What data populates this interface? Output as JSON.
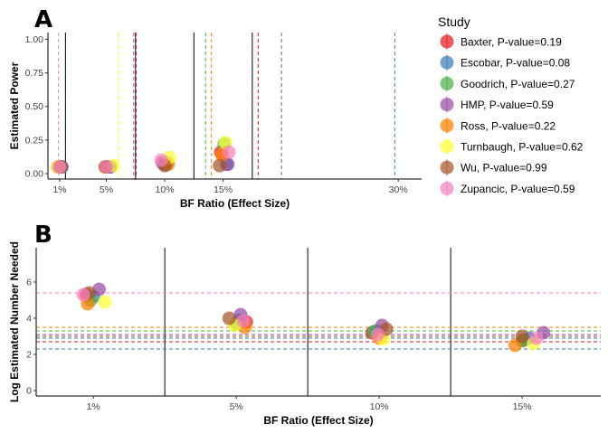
{
  "colors": {
    "Baxter": "#e41a1c",
    "Escobar": "#377eb8",
    "Goodrich": "#4daf4a",
    "HMP": "#984ea3",
    "Ross": "#ff7f00",
    "Turnbaugh": "#ffff33",
    "Wu": "#a65628",
    "Zupancic": "#f781bf"
  },
  "legend": {
    "title": "Study",
    "entries": [
      {
        "study": "Baxter",
        "label": "Baxter, P-value=0.19"
      },
      {
        "study": "Escobar",
        "label": "Escobar, P-value=0.08"
      },
      {
        "study": "Goodrich",
        "label": "Goodrich, P-value=0.27"
      },
      {
        "study": "HMP",
        "label": "HMP, P-value=0.59"
      },
      {
        "study": "Ross",
        "label": "Ross, P-value=0.22"
      },
      {
        "study": "Turnbaugh",
        "label": "Turnbaugh, P-value=0.62"
      },
      {
        "study": "Wu",
        "label": "Wu, P-value=0.99"
      },
      {
        "study": "Zupancic",
        "label": "Zupancic, P-value=0.59"
      }
    ]
  },
  "chart_data": [
    {
      "panel": "A",
      "type": "scatter",
      "xlabel": "BF Ratio (Effect Size)",
      "ylabel": "Estimated Power",
      "x_ticks": [
        "1%",
        "5%",
        "10%",
        "15%",
        "30%"
      ],
      "x_tick_values": [
        1,
        5,
        10,
        15,
        30
      ],
      "xlim": [
        0,
        32
      ],
      "ylim": [
        -0.04,
        1.05
      ],
      "y_ticks": [
        "0.00",
        "0.25",
        "0.50",
        "0.75",
        "1.00"
      ],
      "y_tick_values": [
        0,
        0.25,
        0.5,
        0.75,
        1.0
      ],
      "vlines_solid": [
        1.5,
        7.5,
        12.5,
        17.5
      ],
      "vlines_dashed": [
        {
          "study": "Zupancic",
          "x": 0.9
        },
        {
          "study": "Turnbaugh",
          "x": 6.0
        },
        {
          "study": "HMP",
          "x": 7.35
        },
        {
          "study": "Baxter",
          "x": 7.55
        },
        {
          "study": "Goodrich",
          "x": 13.5
        },
        {
          "study": "Ross",
          "x": 14.0
        },
        {
          "study": "Baxter",
          "x": 18.0
        },
        {
          "study": "HMP",
          "x": 20.0
        },
        {
          "study": "Escobar",
          "x": 29.7
        }
      ],
      "grid": false,
      "series": [
        {
          "study": "Baxter",
          "points": [
            [
              1.05,
              0.05
            ],
            [
              5.2,
              0.05
            ],
            [
              10.1,
              0.07
            ],
            [
              14.8,
              0.16
            ]
          ]
        },
        {
          "study": "Escobar",
          "points": [
            [
              1.2,
              0.05
            ],
            [
              5.3,
              0.05
            ],
            [
              10.0,
              0.07
            ],
            [
              15.3,
              0.07
            ]
          ]
        },
        {
          "study": "Goodrich",
          "points": [
            [
              0.95,
              0.05
            ],
            [
              5.1,
              0.05
            ],
            [
              10.2,
              0.08
            ],
            [
              15.1,
              0.22
            ]
          ]
        },
        {
          "study": "HMP",
          "points": [
            [
              1.15,
              0.05
            ],
            [
              5.35,
              0.05
            ],
            [
              9.8,
              0.08
            ],
            [
              15.4,
              0.07
            ]
          ]
        },
        {
          "study": "Ross",
          "points": [
            [
              0.85,
              0.05
            ],
            [
              4.95,
              0.05
            ],
            [
              10.3,
              0.07
            ],
            [
              14.9,
              0.14
            ]
          ]
        },
        {
          "study": "Turnbaugh",
          "points": [
            [
              0.9,
              0.05
            ],
            [
              5.6,
              0.06
            ],
            [
              10.4,
              0.12
            ],
            [
              15.2,
              0.23
            ]
          ]
        },
        {
          "study": "Wu",
          "points": [
            [
              1.1,
              0.05
            ],
            [
              4.9,
              0.05
            ],
            [
              10.0,
              0.06
            ],
            [
              14.7,
              0.06
            ]
          ]
        },
        {
          "study": "Zupancic",
          "points": [
            [
              1.0,
              0.05
            ],
            [
              5.0,
              0.05
            ],
            [
              9.7,
              0.1
            ],
            [
              15.5,
              0.16
            ]
          ]
        }
      ]
    },
    {
      "panel": "B",
      "type": "scatter",
      "xlabel": "BF Ratio (Effect Size)",
      "ylabel": "Log Estimated Number Needed",
      "x_ticks": [
        "1%",
        "5%",
        "10%",
        "15%"
      ],
      "x_tick_values": [
        1,
        2,
        3,
        4
      ],
      "xlim": [
        0.6,
        4.55
      ],
      "ylim": [
        -0.3,
        7.9
      ],
      "y_ticks": [
        "0",
        "2",
        "4",
        "6"
      ],
      "y_tick_values": [
        0,
        2,
        4,
        6
      ],
      "vlines_solid": [
        1.5,
        2.5,
        3.5
      ],
      "hlines_dashed": [
        {
          "study": "Zupancic",
          "y": 5.4
        },
        {
          "study": "Ross",
          "y": 3.5
        },
        {
          "study": "Goodrich",
          "y": 3.3
        },
        {
          "study": "HMP",
          "y": 3.1
        },
        {
          "study": "Wu",
          "y": 3.0
        },
        {
          "study": "Escobar",
          "y": 2.9
        },
        {
          "study": "Baxter",
          "y": 2.7
        },
        {
          "study": "Escobar",
          "y": 2.3
        }
      ],
      "grid": false,
      "series": [
        {
          "study": "Baxter",
          "points": [
            [
              0.95,
              5.3
            ],
            [
              2.07,
              3.8
            ],
            [
              2.95,
              3.2
            ],
            [
              4.01,
              2.8
            ]
          ]
        },
        {
          "study": "Escobar",
          "points": [
            [
              1.0,
              5.2
            ],
            [
              2.02,
              3.9
            ],
            [
              2.98,
              3.3
            ],
            [
              4.05,
              2.9
            ]
          ]
        },
        {
          "study": "Goodrich",
          "points": [
            [
              0.98,
              5.0
            ],
            [
              2.0,
              3.7
            ],
            [
              2.96,
              3.25
            ],
            [
              4.0,
              2.75
            ]
          ]
        },
        {
          "study": "HMP",
          "points": [
            [
              1.04,
              5.6
            ],
            [
              2.03,
              4.2
            ],
            [
              3.02,
              3.6
            ],
            [
              4.15,
              3.2
            ]
          ]
        },
        {
          "study": "Ross",
          "points": [
            [
              0.96,
              4.8
            ],
            [
              2.06,
              3.5
            ],
            [
              3.0,
              2.9
            ],
            [
              3.95,
              2.5
            ]
          ]
        },
        {
          "study": "Turnbaugh",
          "points": [
            [
              1.08,
              4.9
            ],
            [
              1.99,
              3.6
            ],
            [
              3.03,
              2.85
            ],
            [
              4.08,
              2.6
            ]
          ]
        },
        {
          "study": "Wu",
          "points": [
            [
              0.97,
              5.4
            ],
            [
              1.95,
              4.0
            ],
            [
              3.05,
              3.4
            ],
            [
              4.0,
              3.0
            ]
          ]
        },
        {
          "study": "Zupancic",
          "points": [
            [
              0.93,
              5.3
            ],
            [
              2.05,
              3.85
            ],
            [
              2.99,
              3.1
            ],
            [
              4.1,
              2.9
            ]
          ]
        }
      ]
    }
  ]
}
